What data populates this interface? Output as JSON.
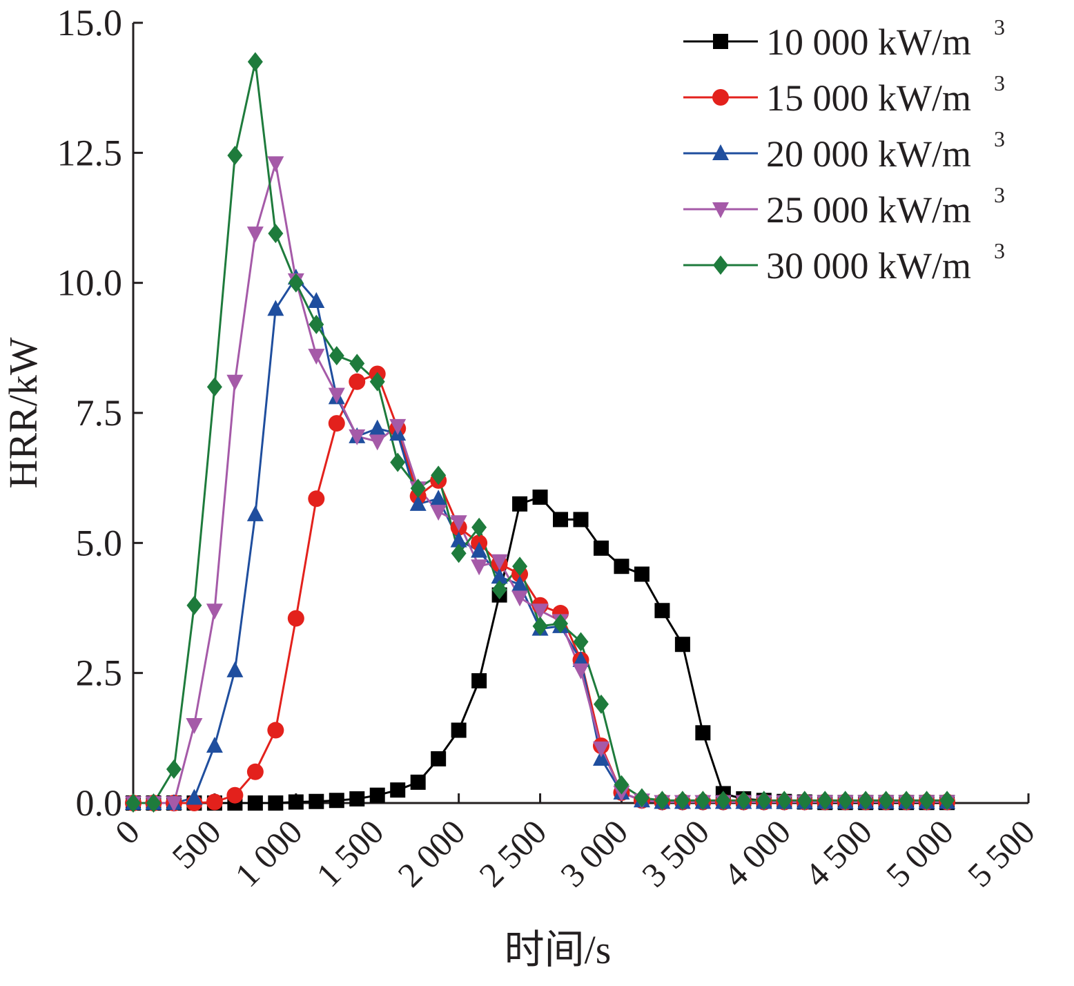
{
  "chart_data": {
    "type": "line",
    "xlabel": "时间/s",
    "ylabel": "HRR/kW",
    "xlim": [
      0,
      5500
    ],
    "ylim": [
      0,
      15
    ],
    "x_ticks": [
      "0",
      "500",
      "1 000",
      "1 500",
      "2 000",
      "2 500",
      "3 000",
      "3 500",
      "4 000",
      "4 500",
      "5 000",
      "5 500"
    ],
    "y_ticks": [
      "0.0",
      "2.5",
      "5.0",
      "7.5",
      "10.0",
      "12.5",
      "15.0"
    ],
    "legend_position": "top-right",
    "x": [
      0,
      125,
      250,
      375,
      500,
      625,
      750,
      875,
      1000,
      1125,
      1250,
      1375,
      1500,
      1625,
      1750,
      1875,
      2000,
      2125,
      2250,
      2375,
      2500,
      2625,
      2750,
      2875,
      3000,
      3125,
      3250,
      3375,
      3500,
      3625,
      3750,
      3875,
      4000,
      4125,
      4250,
      4375,
      4500,
      4625,
      4750,
      4875,
      5000
    ],
    "series": [
      {
        "name": "10 000 kW/m",
        "unit_sup": "3",
        "color": "#000000",
        "marker": "square",
        "values": [
          0.0,
          0.0,
          0.0,
          0.0,
          0.0,
          0.0,
          0.0,
          0.0,
          0.02,
          0.03,
          0.05,
          0.08,
          0.15,
          0.25,
          0.4,
          0.85,
          1.4,
          2.35,
          4.0,
          5.75,
          5.88,
          5.45,
          5.45,
          4.9,
          4.55,
          4.4,
          3.7,
          3.05,
          1.35,
          0.18,
          0.08,
          0.05,
          0.03,
          0.02,
          0.01,
          0.01,
          0.01,
          0.01,
          0.01,
          0.01,
          0.01
        ]
      },
      {
        "name": "15 000 kW/m",
        "unit_sup": "3",
        "color": "#e3211c",
        "marker": "circle",
        "values": [
          0.0,
          0.0,
          0.0,
          0.0,
          0.02,
          0.15,
          0.6,
          1.4,
          3.55,
          5.85,
          7.3,
          8.1,
          8.25,
          7.2,
          5.9,
          6.2,
          5.3,
          5.0,
          4.6,
          4.4,
          3.8,
          3.65,
          2.75,
          1.1,
          0.2,
          0.05,
          0.02,
          0.02,
          0.02,
          0.02,
          0.02,
          0.02,
          0.02,
          0.02,
          0.02,
          0.02,
          0.02,
          0.02,
          0.02,
          0.02,
          0.02
        ]
      },
      {
        "name": "20 000 kW/m",
        "unit_sup": "3",
        "color": "#1f4e9e",
        "marker": "triangle-up",
        "values": [
          0.0,
          0.0,
          0.0,
          0.1,
          1.1,
          2.55,
          5.55,
          9.5,
          10.1,
          9.65,
          7.8,
          7.05,
          7.2,
          7.1,
          5.75,
          5.85,
          5.05,
          4.85,
          4.35,
          4.2,
          3.35,
          3.4,
          2.75,
          0.85,
          0.2,
          0.05,
          0.02,
          0.02,
          0.02,
          0.02,
          0.02,
          0.02,
          0.02,
          0.02,
          0.02,
          0.02,
          0.02,
          0.02,
          0.02,
          0.02,
          0.02
        ]
      },
      {
        "name": "25 000 kW/m",
        "unit_sup": "3",
        "color": "#a55aa8",
        "marker": "triangle-down",
        "values": [
          0.0,
          0.0,
          0.0,
          1.5,
          3.7,
          8.1,
          10.95,
          12.3,
          10.05,
          8.6,
          7.85,
          7.05,
          6.95,
          7.25,
          6.05,
          5.6,
          5.4,
          4.55,
          4.65,
          3.95,
          3.7,
          3.5,
          2.55,
          1.05,
          0.2,
          0.05,
          0.02,
          0.02,
          0.02,
          0.02,
          0.02,
          0.02,
          0.02,
          0.02,
          0.02,
          0.02,
          0.02,
          0.02,
          0.02,
          0.02,
          0.02
        ]
      },
      {
        "name": "30 000 kW/m",
        "unit_sup": "3",
        "color": "#1e7b3c",
        "marker": "diamond",
        "values": [
          0.0,
          0.0,
          0.65,
          3.8,
          8.0,
          12.45,
          14.25,
          10.95,
          10.0,
          9.2,
          8.6,
          8.45,
          8.1,
          6.55,
          6.05,
          6.3,
          4.8,
          5.3,
          4.1,
          4.55,
          3.4,
          3.45,
          3.1,
          1.9,
          0.35,
          0.1,
          0.05,
          0.05,
          0.05,
          0.05,
          0.05,
          0.05,
          0.05,
          0.05,
          0.05,
          0.05,
          0.05,
          0.05,
          0.05,
          0.05,
          0.05
        ]
      }
    ]
  }
}
